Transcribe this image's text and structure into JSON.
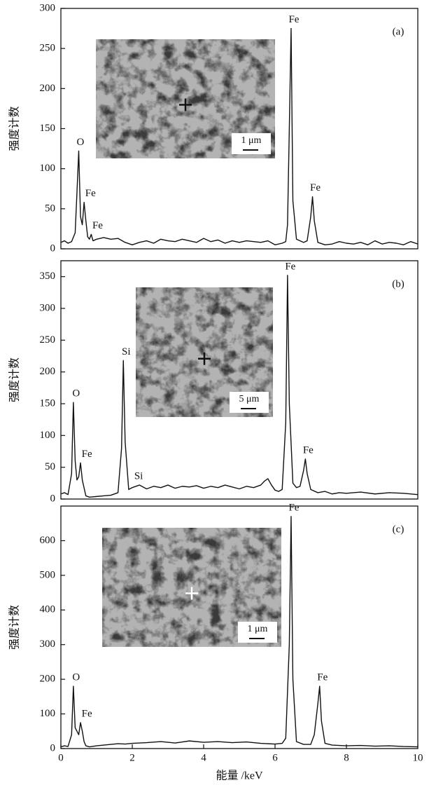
{
  "chart_data": [
    {
      "type": "line",
      "panel_label": "(a)",
      "ylabel": "强度计数",
      "inset_scale": "1 μm",
      "x": [
        0,
        0.1,
        0.2,
        0.3,
        0.4,
        0.45,
        0.5,
        0.55,
        0.6,
        0.65,
        0.7,
        0.75,
        0.8,
        0.85,
        0.9,
        1.0,
        1.2,
        1.4,
        1.6,
        1.8,
        2.0,
        2.2,
        2.4,
        2.6,
        2.8,
        3.0,
        3.2,
        3.4,
        3.6,
        3.8,
        4.0,
        4.2,
        4.4,
        4.6,
        4.8,
        5.0,
        5.2,
        5.4,
        5.6,
        5.8,
        6.0,
        6.2,
        6.3,
        6.35,
        6.4,
        6.45,
        6.5,
        6.6,
        6.8,
        6.9,
        7.0,
        7.05,
        7.1,
        7.2,
        7.4,
        7.6,
        7.8,
        8.0,
        8.2,
        8.4,
        8.6,
        8.8,
        9.0,
        9.2,
        9.4,
        9.6,
        9.8,
        10.0
      ],
      "values": [
        8,
        10,
        7,
        9,
        20,
        70,
        122,
        40,
        30,
        58,
        35,
        15,
        12,
        18,
        10,
        12,
        14,
        12,
        13,
        8,
        5,
        8,
        10,
        7,
        12,
        10,
        9,
        12,
        10,
        8,
        13,
        9,
        11,
        7,
        10,
        8,
        10,
        9,
        8,
        10,
        5,
        7,
        9,
        30,
        150,
        275,
        60,
        12,
        8,
        10,
        40,
        65,
        35,
        8,
        5,
        6,
        9,
        7,
        6,
        8,
        5,
        10,
        6,
        8,
        7,
        5,
        9,
        6
      ],
      "color": "#111111",
      "xlim": [
        0,
        10
      ],
      "ylim": [
        0,
        300
      ],
      "yticks": [
        0,
        50,
        100,
        150,
        200,
        250,
        300
      ],
      "annotations": [
        {
          "text": "O",
          "x": 0.47,
          "y": 122
        },
        {
          "text": "Fe",
          "x": 0.75,
          "y": 58
        },
        {
          "text": "Fe",
          "x": 0.95,
          "y": 18
        },
        {
          "text": "Fe",
          "x": 6.45,
          "y": 275
        },
        {
          "text": "Fe",
          "x": 7.05,
          "y": 65
        }
      ]
    },
    {
      "type": "line",
      "panel_label": "(b)",
      "ylabel": "强度计数",
      "inset_scale": "5 μm",
      "x": [
        0,
        0.1,
        0.2,
        0.3,
        0.35,
        0.4,
        0.45,
        0.5,
        0.55,
        0.6,
        0.7,
        0.8,
        1.0,
        1.2,
        1.4,
        1.6,
        1.7,
        1.75,
        1.8,
        1.9,
        2.0,
        2.2,
        2.4,
        2.6,
        2.8,
        3.0,
        3.2,
        3.4,
        3.6,
        3.8,
        4.0,
        4.2,
        4.4,
        4.6,
        4.8,
        5.0,
        5.2,
        5.4,
        5.6,
        5.7,
        5.8,
        5.9,
        6.0,
        6.1,
        6.2,
        6.3,
        6.35,
        6.4,
        6.5,
        6.6,
        6.7,
        6.8,
        6.85,
        6.9,
        7.0,
        7.2,
        7.4,
        7.6,
        7.8,
        8.0,
        8.4,
        8.8,
        9.2,
        9.6,
        10.0
      ],
      "values": [
        8,
        10,
        7,
        40,
        152,
        60,
        30,
        35,
        57,
        30,
        5,
        3,
        4,
        5,
        6,
        10,
        80,
        218,
        90,
        15,
        18,
        22,
        16,
        20,
        18,
        22,
        17,
        20,
        19,
        21,
        17,
        20,
        18,
        22,
        19,
        16,
        20,
        18,
        22,
        28,
        32,
        22,
        14,
        12,
        15,
        120,
        352,
        150,
        25,
        18,
        20,
        45,
        63,
        40,
        15,
        10,
        12,
        8,
        10,
        9,
        11,
        8,
        10,
        9,
        7
      ],
      "color": "#111111",
      "xlim": [
        0,
        10
      ],
      "ylim": [
        0,
        375
      ],
      "yticks": [
        0,
        50,
        100,
        150,
        200,
        250,
        300,
        350
      ],
      "annotations": [
        {
          "text": "O",
          "x": 0.35,
          "y": 152
        },
        {
          "text": "Fe",
          "x": 0.65,
          "y": 57
        },
        {
          "text": "Si",
          "x": 1.75,
          "y": 218
        },
        {
          "text": "Si",
          "x": 2.1,
          "y": 22
        },
        {
          "text": "Fe",
          "x": 6.35,
          "y": 352
        },
        {
          "text": "Fe",
          "x": 6.85,
          "y": 63
        }
      ]
    },
    {
      "type": "line",
      "panel_label": "(c)",
      "ylabel": "强度计数",
      "xlabel": "能量 /keV",
      "inset_scale": "1 μm",
      "x": [
        0,
        0.1,
        0.2,
        0.3,
        0.35,
        0.4,
        0.5,
        0.55,
        0.6,
        0.65,
        0.7,
        0.8,
        1.0,
        1.2,
        1.4,
        1.6,
        1.8,
        2.0,
        2.4,
        2.8,
        3.2,
        3.6,
        4.0,
        4.4,
        4.8,
        5.2,
        5.6,
        6.0,
        6.2,
        6.3,
        6.4,
        6.45,
        6.5,
        6.6,
        6.8,
        7.0,
        7.1,
        7.2,
        7.25,
        7.3,
        7.4,
        7.6,
        8.0,
        8.4,
        8.8,
        9.2,
        9.6,
        10.0
      ],
      "values": [
        5,
        8,
        6,
        40,
        180,
        60,
        40,
        75,
        50,
        20,
        8,
        5,
        8,
        10,
        12,
        14,
        13,
        15,
        17,
        20,
        16,
        22,
        18,
        20,
        17,
        19,
        15,
        13,
        15,
        30,
        300,
        670,
        200,
        20,
        12,
        12,
        40,
        130,
        180,
        80,
        15,
        10,
        8,
        9,
        7,
        8,
        6,
        5
      ],
      "color": "#111111",
      "xlim": [
        0,
        10
      ],
      "ylim": [
        0,
        700
      ],
      "yticks": [
        0,
        100,
        200,
        300,
        400,
        500,
        600
      ],
      "xticks": [
        0,
        2,
        4,
        6,
        8,
        10
      ],
      "annotations": [
        {
          "text": "O",
          "x": 0.35,
          "y": 180
        },
        {
          "text": "Fe",
          "x": 0.65,
          "y": 75
        },
        {
          "text": "Fe",
          "x": 6.45,
          "y": 670
        },
        {
          "text": "Fe",
          "x": 7.25,
          "y": 180
        }
      ]
    }
  ]
}
